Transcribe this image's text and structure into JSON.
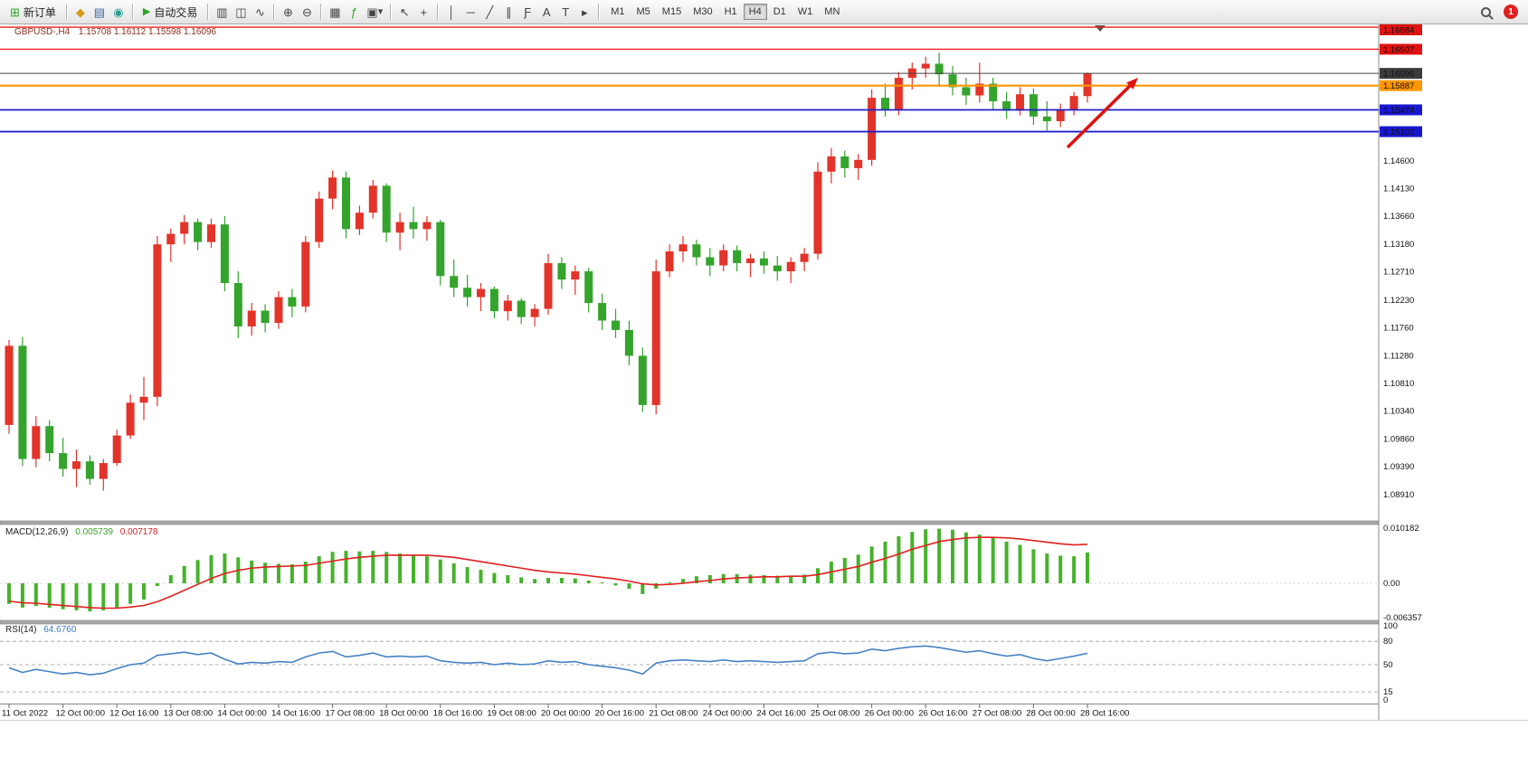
{
  "toolbar": {
    "new_order_label": "新订单",
    "autotrading_label": "自动交易",
    "timeframes": [
      "M1",
      "M5",
      "M15",
      "M30",
      "H1",
      "H4",
      "D1",
      "W1",
      "MN"
    ],
    "active_timeframe": "H4",
    "notification_badge": "1",
    "icons": {
      "new_order": "⊞",
      "market_watch": "◆",
      "navigator": "▤",
      "terminal": "◉",
      "autotrading": "▶",
      "bar_chart": "▥",
      "candle_chart": "◫",
      "line_chart": "∿",
      "zoom_in": "⊕",
      "zoom_out": "⊖",
      "tile_windows": "▦",
      "indicators": "ƒ",
      "templates": "▣",
      "dropdown": "▾",
      "cursor": "↖",
      "crosshair": "+",
      "vertical_line": "│",
      "horizontal_line": "─",
      "trendline": "╱",
      "channel": "∥",
      "fibonacci": "Ƒ",
      "text": "A",
      "label": "T",
      "arrows": "▸"
    }
  },
  "chart": {
    "header_symbol": "GBPUSD-,H4",
    "header_ohlc": "1.15708 1.16112 1.15598 1.16096",
    "levels": [
      {
        "label": "1.16884",
        "value": 1.16884,
        "line_color": "#ee1c1c",
        "badge_color": "#e01212",
        "width": 1.4
      },
      {
        "label": "1.16507",
        "value": 1.16507,
        "line_color": "#ee1c1c",
        "badge_color": "#e01212",
        "width": 1.4
      },
      {
        "label": "1.16096",
        "value": 1.16096,
        "line_color": "#444444",
        "badge_color": "#3c3c3c",
        "width": 1
      },
      {
        "label": "1.15887",
        "value": 1.15887,
        "line_color": "#ff9500",
        "badge_color": "#ff9500",
        "width": 2.2
      },
      {
        "label": "1.15474",
        "value": 1.15474,
        "line_color": "#2020cc",
        "badge_color": "#1717cf",
        "width": 1.8
      },
      {
        "label": "1.15102",
        "value": 1.15102,
        "line_color": "#2020cc",
        "badge_color": "#1717cf",
        "width": 1.8
      }
    ],
    "y_ticks": [
      "1.14600",
      "1.14130",
      "1.13660",
      "1.13180",
      "1.12710",
      "1.12230",
      "1.11760",
      "1.11280",
      "1.10810",
      "1.10340",
      "1.09860",
      "1.09390",
      "1.08910"
    ],
    "x_labels": [
      "11 Oct 2022",
      "12 Oct 00:00",
      "12 Oct 16:00",
      "13 Oct 08:00",
      "14 Oct 00:00",
      "14 Oct 16:00",
      "17 Oct 08:00",
      "18 Oct 00:00",
      "18 Oct 16:00",
      "19 Oct 08:00",
      "20 Oct 00:00",
      "20 Oct 16:00",
      "21 Oct 08:00",
      "24 Oct 00:00",
      "24 Oct 16:00",
      "25 Oct 08:00",
      "26 Oct 00:00",
      "26 Oct 16:00",
      "27 Oct 08:00",
      "28 Oct 00:00",
      "28 Oct 16:00"
    ]
  },
  "chart_data": {
    "type": "candlestick",
    "symbol": "GBPUSD-",
    "timeframe": "H4",
    "current_ohlc": {
      "open": 1.15708,
      "high": 1.16112,
      "low": 1.15598,
      "close": 1.16096
    },
    "price_range": {
      "top": 1.169,
      "bottom": 1.0868
    },
    "up_color": "#e2342a",
    "down_color": "#34a42c",
    "candles": [
      [
        1.101,
        1.1155,
        1.0995,
        1.1145
      ],
      [
        1.1145,
        1.116,
        1.094,
        1.0952
      ],
      [
        1.0952,
        1.1025,
        1.0938,
        1.1008
      ],
      [
        1.1008,
        1.1018,
        1.0948,
        1.0962
      ],
      [
        1.0962,
        1.0988,
        1.0922,
        1.0935
      ],
      [
        1.0935,
        1.0968,
        1.0904,
        1.0948
      ],
      [
        1.0948,
        1.0958,
        1.0908,
        1.0918
      ],
      [
        1.0918,
        1.0952,
        1.0898,
        1.0945
      ],
      [
        1.0945,
        1.1002,
        1.094,
        1.0992
      ],
      [
        1.0992,
        1.1062,
        1.0986,
        1.1048
      ],
      [
        1.1048,
        1.1092,
        1.1018,
        1.1058
      ],
      [
        1.1058,
        1.1332,
        1.1042,
        1.1318
      ],
      [
        1.1318,
        1.1345,
        1.1288,
        1.1336
      ],
      [
        1.1336,
        1.1368,
        1.1318,
        1.1356
      ],
      [
        1.1356,
        1.1362,
        1.1308,
        1.1322
      ],
      [
        1.1322,
        1.1362,
        1.1312,
        1.1352
      ],
      [
        1.1352,
        1.1366,
        1.1238,
        1.1252
      ],
      [
        1.1252,
        1.1272,
        1.1158,
        1.1178
      ],
      [
        1.1178,
        1.1218,
        1.1162,
        1.1205
      ],
      [
        1.1205,
        1.1216,
        1.1168,
        1.1184
      ],
      [
        1.1184,
        1.1238,
        1.1174,
        1.1228
      ],
      [
        1.1228,
        1.1242,
        1.1194,
        1.1212
      ],
      [
        1.1212,
        1.1332,
        1.1202,
        1.1322
      ],
      [
        1.1322,
        1.1408,
        1.1312,
        1.1396
      ],
      [
        1.1396,
        1.1444,
        1.1378,
        1.1432
      ],
      [
        1.1432,
        1.1442,
        1.1328,
        1.1344
      ],
      [
        1.1344,
        1.1384,
        1.1334,
        1.1372
      ],
      [
        1.1372,
        1.1428,
        1.1362,
        1.1418
      ],
      [
        1.1418,
        1.1422,
        1.1322,
        1.1338
      ],
      [
        1.1338,
        1.1372,
        1.1308,
        1.1356
      ],
      [
        1.1356,
        1.1382,
        1.1328,
        1.1344
      ],
      [
        1.1344,
        1.1366,
        1.1324,
        1.1356
      ],
      [
        1.1356,
        1.136,
        1.1248,
        1.1264
      ],
      [
        1.1264,
        1.1292,
        1.1228,
        1.1244
      ],
      [
        1.1244,
        1.1266,
        1.1212,
        1.1228
      ],
      [
        1.1228,
        1.1252,
        1.1204,
        1.1242
      ],
      [
        1.1242,
        1.1246,
        1.1192,
        1.1204
      ],
      [
        1.1204,
        1.1232,
        1.1188,
        1.1222
      ],
      [
        1.1222,
        1.1226,
        1.1182,
        1.1194
      ],
      [
        1.1194,
        1.1216,
        1.1178,
        1.1208
      ],
      [
        1.1208,
        1.1302,
        1.1198,
        1.1286
      ],
      [
        1.1286,
        1.1296,
        1.1242,
        1.1258
      ],
      [
        1.1258,
        1.1282,
        1.1232,
        1.1272
      ],
      [
        1.1272,
        1.1278,
        1.1202,
        1.1218
      ],
      [
        1.1218,
        1.1234,
        1.1172,
        1.1188
      ],
      [
        1.1188,
        1.1208,
        1.1158,
        1.1172
      ],
      [
        1.1172,
        1.1188,
        1.1112,
        1.1128
      ],
      [
        1.1128,
        1.1142,
        1.1032,
        1.1044
      ],
      [
        1.1044,
        1.1292,
        1.1028,
        1.1272
      ],
      [
        1.1272,
        1.1318,
        1.1262,
        1.1306
      ],
      [
        1.1306,
        1.1332,
        1.1288,
        1.1318
      ],
      [
        1.1318,
        1.1326,
        1.1282,
        1.1296
      ],
      [
        1.1296,
        1.1312,
        1.1264,
        1.1282
      ],
      [
        1.1282,
        1.1318,
        1.1272,
        1.1308
      ],
      [
        1.1308,
        1.1316,
        1.1272,
        1.1286
      ],
      [
        1.1286,
        1.1302,
        1.1262,
        1.1294
      ],
      [
        1.1294,
        1.1306,
        1.1268,
        1.1282
      ],
      [
        1.1282,
        1.1298,
        1.1256,
        1.1272
      ],
      [
        1.1272,
        1.1296,
        1.1252,
        1.1288
      ],
      [
        1.1288,
        1.1312,
        1.1272,
        1.1302
      ],
      [
        1.1302,
        1.1458,
        1.1292,
        1.1442
      ],
      [
        1.1442,
        1.1482,
        1.1422,
        1.1468
      ],
      [
        1.1468,
        1.1478,
        1.1432,
        1.1448
      ],
      [
        1.1448,
        1.1472,
        1.1428,
        1.1462
      ],
      [
        1.1462,
        1.1582,
        1.1452,
        1.1568
      ],
      [
        1.1568,
        1.1592,
        1.1536,
        1.1548
      ],
      [
        1.1548,
        1.1612,
        1.1538,
        1.1602
      ],
      [
        1.1602,
        1.1628,
        1.1582,
        1.1618
      ],
      [
        1.1618,
        1.1638,
        1.1602,
        1.1626
      ],
      [
        1.1626,
        1.1645,
        1.1588,
        1.1608
      ],
      [
        1.1608,
        1.1622,
        1.1572,
        1.1586
      ],
      [
        1.1586,
        1.1602,
        1.1556,
        1.1572
      ],
      [
        1.1572,
        1.1628,
        1.156,
        1.1592
      ],
      [
        1.1592,
        1.1602,
        1.1548,
        1.1562
      ],
      [
        1.1562,
        1.1578,
        1.1532,
        1.1546
      ],
      [
        1.1546,
        1.1586,
        1.1538,
        1.1574
      ],
      [
        1.1574,
        1.1584,
        1.1522,
        1.1536
      ],
      [
        1.1536,
        1.1562,
        1.1512,
        1.1528
      ],
      [
        1.1528,
        1.1558,
        1.1518,
        1.1548
      ],
      [
        1.1548,
        1.1578,
        1.1538,
        1.1571
      ],
      [
        1.15708,
        1.16112,
        1.15598,
        1.16096
      ]
    ],
    "indicators": {
      "macd": {
        "label": "MACD(12,26,9)",
        "main_value": "0.005739",
        "signal_value": "0.007178",
        "histogram_color": "#46b22b",
        "signal_color": "#e02020",
        "range": {
          "top": 0.0102,
          "zero": 0,
          "bottom": -0.00652
        },
        "scale_labels": [
          "0.010182",
          "0.00",
          "-0.006357"
        ],
        "histogram": [
          -0.0038,
          -0.0045,
          -0.0042,
          -0.0045,
          -0.0048,
          -0.005,
          -0.0052,
          -0.005,
          -0.0045,
          -0.0038,
          -0.003,
          -0.0005,
          0.0015,
          0.0032,
          0.0043,
          0.0052,
          0.0055,
          0.0048,
          0.0042,
          0.0038,
          0.0036,
          0.0035,
          0.004,
          0.005,
          0.0058,
          0.006,
          0.0059,
          0.006,
          0.0058,
          0.0055,
          0.0052,
          0.005,
          0.0044,
          0.0037,
          0.003,
          0.0025,
          0.0019,
          0.0015,
          0.0011,
          0.0008,
          0.001,
          0.001,
          0.0009,
          0.0005,
          0.0,
          -0.0004,
          -0.001,
          -0.002,
          -0.001,
          0.0,
          0.0008,
          0.0013,
          0.0015,
          0.0017,
          0.0017,
          0.0016,
          0.0015,
          0.0014,
          0.0014,
          0.0016,
          0.0028,
          0.004,
          0.0047,
          0.0053,
          0.0068,
          0.0077,
          0.0087,
          0.0095,
          0.01,
          0.0101,
          0.0099,
          0.0094,
          0.009,
          0.0084,
          0.0077,
          0.0071,
          0.0063,
          0.0055,
          0.0051,
          0.005,
          0.0057
        ],
        "signal": [
          -0.0033,
          -0.0036,
          -0.0037,
          -0.0039,
          -0.0041,
          -0.0043,
          -0.0045,
          -0.0046,
          -0.0046,
          -0.0044,
          -0.0041,
          -0.0034,
          -0.0024,
          -0.0013,
          -0.0002,
          0.0009,
          0.0018,
          0.0024,
          0.0028,
          0.003,
          0.0031,
          0.0032,
          0.0033,
          0.0037,
          0.0041,
          0.0045,
          0.0048,
          0.005,
          0.0052,
          0.0052,
          0.0052,
          0.0052,
          0.005,
          0.0048,
          0.0044,
          0.004,
          0.0036,
          0.0032,
          0.0028,
          0.0024,
          0.0021,
          0.0019,
          0.0017,
          0.0014,
          0.0011,
          0.0008,
          0.0004,
          -0.0001,
          -0.0003,
          -0.0002,
          0.0,
          0.0003,
          0.0005,
          0.0008,
          0.001,
          0.0011,
          0.0012,
          0.0012,
          0.0013,
          0.0013,
          0.0016,
          0.0021,
          0.0026,
          0.0031,
          0.0039,
          0.0046,
          0.0054,
          0.0063,
          0.007,
          0.0077,
          0.0081,
          0.0084,
          0.0085,
          0.0085,
          0.0084,
          0.0082,
          0.0079,
          0.0076,
          0.0073,
          0.0071,
          0.0072
        ]
      },
      "rsi": {
        "label": "RSI(14)",
        "value": "64.6760",
        "line_color": "#4782c4",
        "range": {
          "top": 100,
          "bottom": 0
        },
        "levels": [
          80,
          50,
          15
        ],
        "scale_labels": [
          "100",
          "80",
          "50",
          "15",
          "0"
        ],
        "values": [
          46,
          40,
          44,
          41,
          38,
          40,
          37,
          39,
          45,
          50,
          52,
          62,
          64,
          66,
          63,
          65,
          57,
          51,
          53,
          52,
          54,
          53,
          60,
          65,
          67,
          60,
          62,
          65,
          60,
          61,
          60,
          61,
          55,
          53,
          52,
          53,
          50,
          52,
          50,
          51,
          55,
          53,
          54,
          50,
          48,
          46,
          43,
          38,
          52,
          55,
          56,
          55,
          54,
          56,
          54,
          55,
          54,
          53,
          54,
          55,
          64,
          66,
          64,
          65,
          70,
          68,
          71,
          73,
          74,
          72,
          69,
          66,
          68,
          64,
          61,
          63,
          58,
          55,
          58,
          61,
          64.7
        ]
      }
    },
    "annotations": {
      "arrow": {
        "from": [
          1180,
          136
        ],
        "to": [
          1258,
          59
        ],
        "color": "#e01212"
      }
    }
  }
}
